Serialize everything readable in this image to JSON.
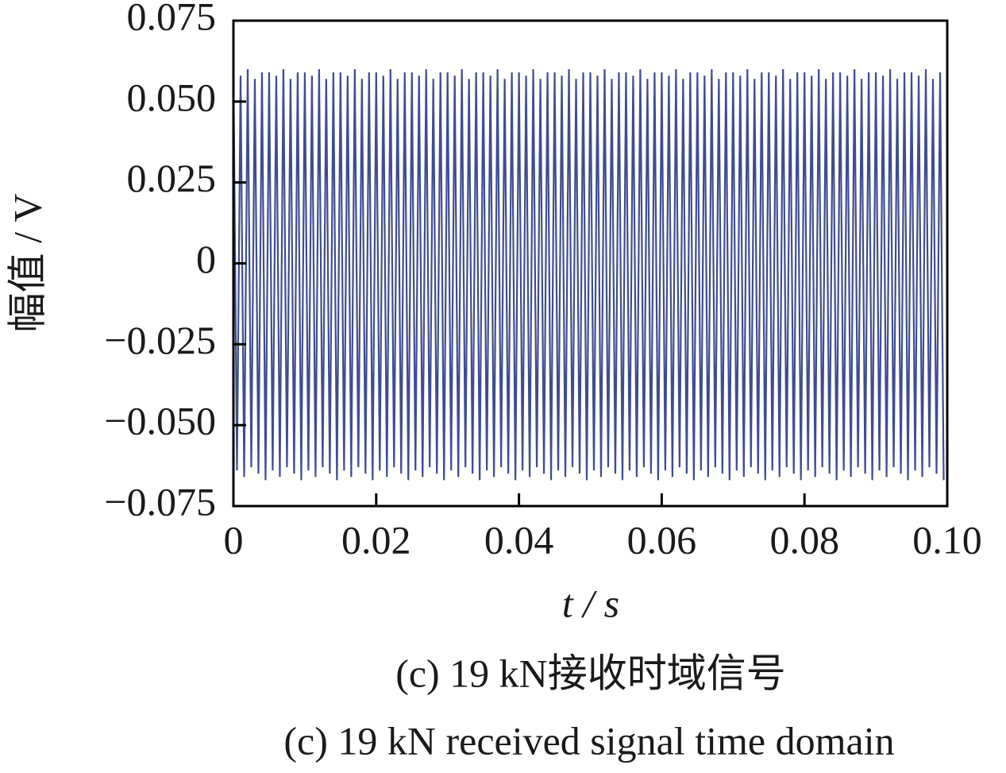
{
  "chart_data": {
    "type": "line",
    "ylabel": "幅值 / V",
    "xlabel": "t / s",
    "caption_cn": "(c)  19 kN接收时域信号",
    "caption_en": "(c) 19 kN received signal time domain",
    "color": "#3f4d8e",
    "xlim": [
      0,
      0.1
    ],
    "ylim": [
      -0.075,
      0.075
    ],
    "xticks": [
      0,
      0.02,
      0.04,
      0.06,
      0.08,
      {
        "value": 0.1,
        "label": "0.10"
      }
    ],
    "yticks": [
      {
        "value": -0.075,
        "label": "−0.075"
      },
      {
        "value": -0.05,
        "label": "−0.050"
      },
      {
        "value": -0.025,
        "label": "−0.025"
      },
      0,
      0.025,
      {
        "value": 0.05,
        "label": "0.050"
      },
      0.075
    ],
    "x": [
      0,
      0.0005,
      0.001,
      0.0015,
      0.002,
      0.0025,
      0.003,
      0.0035,
      0.004,
      0.0045,
      0.005,
      0.0055,
      0.006,
      0.0065,
      0.007,
      0.0075,
      0.008,
      0.0085,
      0.009,
      0.0095,
      0.01,
      0.0105,
      0.011,
      0.0115,
      0.012,
      0.0125,
      0.013,
      0.0135,
      0.014,
      0.0145,
      0.015,
      0.0155,
      0.016,
      0.0165,
      0.017,
      0.0175,
      0.018,
      0.0185,
      0.019,
      0.0195,
      0.02,
      0.0205,
      0.021,
      0.0215,
      0.022,
      0.0225,
      0.023,
      0.0235,
      0.024,
      0.0245,
      0.025,
      0.0255,
      0.026,
      0.0265,
      0.027,
      0.0275,
      0.028,
      0.0285,
      0.029,
      0.0295,
      0.03,
      0.0305,
      0.031,
      0.0315,
      0.032,
      0.0325,
      0.033,
      0.0335,
      0.034,
      0.0345,
      0.035,
      0.0355,
      0.036,
      0.0365,
      0.037,
      0.0375,
      0.038,
      0.0385,
      0.039,
      0.0395,
      0.04,
      0.0405,
      0.041,
      0.0415,
      0.042,
      0.0425,
      0.043,
      0.0435,
      0.044,
      0.0445,
      0.045,
      0.0455,
      0.046,
      0.0465,
      0.047,
      0.0475,
      0.048,
      0.0485,
      0.049,
      0.0495,
      0.05,
      0.0505,
      0.051,
      0.0515,
      0.052,
      0.0525,
      0.053,
      0.0535,
      0.054,
      0.0545,
      0.055,
      0.0555,
      0.056,
      0.0565,
      0.057,
      0.0575,
      0.058,
      0.0585,
      0.059,
      0.0595,
      0.06,
      0.0605,
      0.061,
      0.0615,
      0.062,
      0.0625,
      0.063,
      0.0635,
      0.064,
      0.0645,
      0.065,
      0.0655,
      0.066,
      0.0665,
      0.067,
      0.0675,
      0.068,
      0.0685,
      0.069,
      0.0695,
      0.07,
      0.0705,
      0.071,
      0.0715,
      0.072,
      0.0725,
      0.073,
      0.0735,
      0.074,
      0.0745,
      0.075,
      0.0755,
      0.076,
      0.0765,
      0.077,
      0.0775,
      0.078,
      0.0785,
      0.079,
      0.0795,
      0.08,
      0.0805,
      0.081,
      0.0815,
      0.082,
      0.0825,
      0.083,
      0.0835,
      0.084,
      0.0845,
      0.085,
      0.0855,
      0.086,
      0.0865,
      0.087,
      0.0875,
      0.088,
      0.0885,
      0.089,
      0.0895,
      0.09,
      0.0905,
      0.091,
      0.0915,
      0.092,
      0.0925,
      0.093,
      0.0935,
      0.094,
      0.0945,
      0.095,
      0.0955,
      0.096,
      0.0965,
      0.097,
      0.0975,
      0.098,
      0.0985,
      0.099,
      0.0995
    ],
    "values": [
      0.059,
      -0.064,
      0.058,
      -0.066,
      0.06,
      -0.063,
      0.057,
      -0.065,
      0.059,
      -0.067,
      0.059,
      -0.064,
      0.058,
      -0.066,
      0.06,
      -0.063,
      0.057,
      -0.065,
      0.059,
      -0.067,
      0.059,
      -0.064,
      0.058,
      -0.066,
      0.06,
      -0.063,
      0.057,
      -0.065,
      0.059,
      -0.067,
      0.059,
      -0.064,
      0.058,
      -0.066,
      0.06,
      -0.063,
      0.057,
      -0.065,
      0.059,
      -0.067,
      0.059,
      -0.064,
      0.058,
      -0.066,
      0.06,
      -0.063,
      0.057,
      -0.065,
      0.059,
      -0.067,
      0.059,
      -0.064,
      0.058,
      -0.066,
      0.06,
      -0.063,
      0.057,
      -0.065,
      0.059,
      -0.067,
      0.059,
      -0.064,
      0.058,
      -0.066,
      0.06,
      -0.063,
      0.057,
      -0.065,
      0.059,
      -0.067,
      0.059,
      -0.064,
      0.058,
      -0.066,
      0.06,
      -0.063,
      0.057,
      -0.065,
      0.059,
      -0.067,
      0.059,
      -0.064,
      0.058,
      -0.066,
      0.06,
      -0.063,
      0.057,
      -0.065,
      0.059,
      -0.067,
      0.059,
      -0.064,
      0.058,
      -0.066,
      0.06,
      -0.063,
      0.057,
      -0.065,
      0.059,
      -0.067,
      0.059,
      -0.064,
      0.058,
      -0.066,
      0.06,
      -0.063,
      0.057,
      -0.065,
      0.059,
      -0.067,
      0.059,
      -0.064,
      0.058,
      -0.066,
      0.06,
      -0.063,
      0.057,
      -0.065,
      0.059,
      -0.067,
      0.059,
      -0.064,
      0.058,
      -0.066,
      0.06,
      -0.063,
      0.057,
      -0.065,
      0.059,
      -0.067,
      0.059,
      -0.064,
      0.058,
      -0.066,
      0.06,
      -0.063,
      0.057,
      -0.065,
      0.059,
      -0.067,
      0.059,
      -0.064,
      0.058,
      -0.066,
      0.06,
      -0.063,
      0.057,
      -0.065,
      0.059,
      -0.067,
      0.059,
      -0.064,
      0.058,
      -0.066,
      0.06,
      -0.063,
      0.057,
      -0.065,
      0.059,
      -0.067,
      0.059,
      -0.064,
      0.058,
      -0.066,
      0.06,
      -0.063,
      0.057,
      -0.065,
      0.059,
      -0.067,
      0.059,
      -0.064,
      0.058,
      -0.066,
      0.06,
      -0.063,
      0.057,
      -0.065,
      0.059,
      -0.067,
      0.059,
      -0.064,
      0.058,
      -0.066,
      0.06,
      -0.063,
      0.057,
      -0.065,
      0.059,
      -0.067,
      0.059,
      -0.064,
      0.058,
      -0.066,
      0.06,
      -0.063,
      0.057,
      -0.065,
      0.059,
      -0.067
    ]
  }
}
